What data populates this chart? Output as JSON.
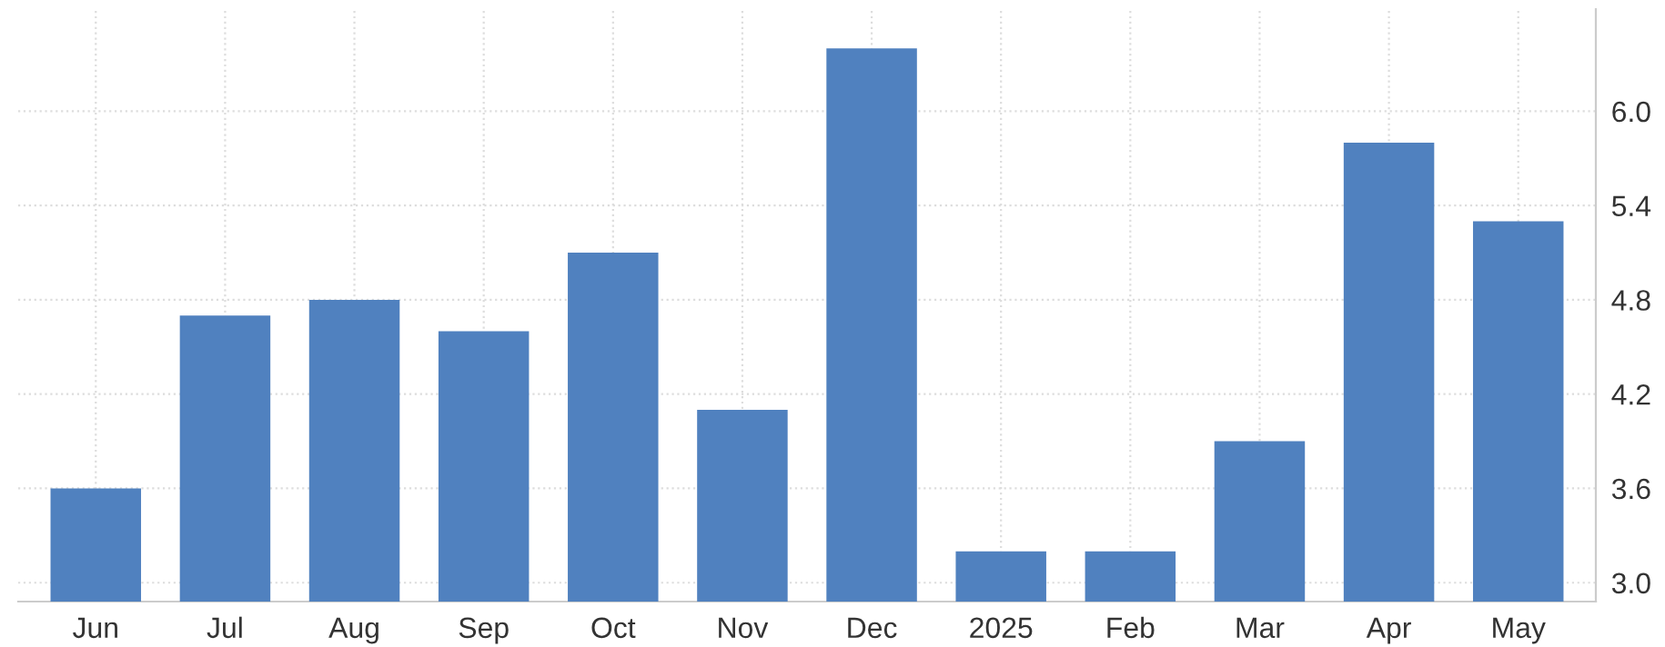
{
  "chart_data": {
    "type": "bar",
    "categories": [
      "Jun",
      "Jul",
      "Aug",
      "Sep",
      "Oct",
      "Nov",
      "Dec",
      "2025",
      "Feb",
      "Mar",
      "Apr",
      "May"
    ],
    "values": [
      3.6,
      4.7,
      4.8,
      4.6,
      5.1,
      4.1,
      6.4,
      3.2,
      3.2,
      3.9,
      5.8,
      5.3
    ],
    "color": "#5081bf",
    "ylim": [
      2.88,
      6.65
    ],
    "yticks": [
      {
        "value": 3.0,
        "label": "3.0"
      },
      {
        "value": 3.6,
        "label": "3.6"
      },
      {
        "value": 4.2,
        "label": "4.2"
      },
      {
        "value": 4.8,
        "label": "4.8"
      },
      {
        "value": 5.4,
        "label": "5.4"
      },
      {
        "value": 6.0,
        "label": "6.0"
      }
    ],
    "grid": true
  }
}
